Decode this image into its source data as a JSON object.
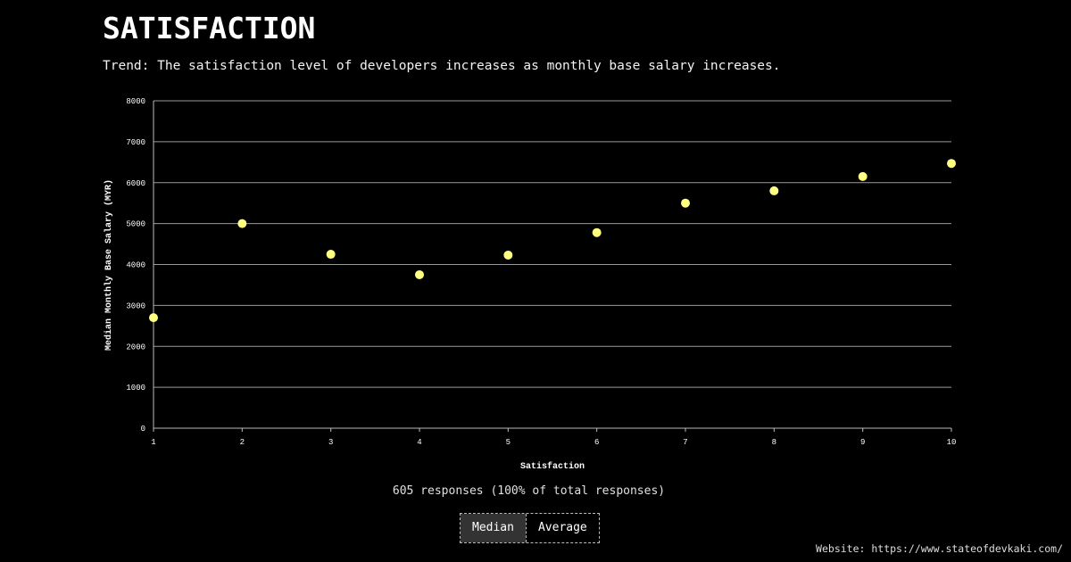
{
  "header": {
    "title": "SATISFACTION",
    "subtitle": "Trend: The satisfaction level of developers increases as monthly base salary increases."
  },
  "chart_data": {
    "type": "scatter",
    "xlabel": "Satisfaction",
    "ylabel": "Median Monthly Base Salary (MYR)",
    "xlim": [
      1,
      10
    ],
    "ylim": [
      0,
      8000
    ],
    "x_ticks": [
      1,
      2,
      3,
      4,
      5,
      6,
      7,
      8,
      9,
      10
    ],
    "y_ticks": [
      0,
      1000,
      2000,
      3000,
      4000,
      5000,
      6000,
      7000,
      8000
    ],
    "grid": "horizontal",
    "point_color": "#ffff80",
    "points": [
      {
        "x": 1,
        "y": 2700
      },
      {
        "x": 2,
        "y": 5000
      },
      {
        "x": 3,
        "y": 4250
      },
      {
        "x": 4,
        "y": 3750
      },
      {
        "x": 5,
        "y": 4230
      },
      {
        "x": 6,
        "y": 4780
      },
      {
        "x": 7,
        "y": 5500
      },
      {
        "x": 8,
        "y": 5800
      },
      {
        "x": 9,
        "y": 6150
      },
      {
        "x": 10,
        "y": 6470
      }
    ]
  },
  "summary": {
    "responses": "605 responses (100% of total responses)"
  },
  "toggle": {
    "median_label": "Median",
    "average_label": "Average",
    "selected": "Median"
  },
  "footer": {
    "website": "Website: https://www.stateofdevkaki.com/"
  }
}
